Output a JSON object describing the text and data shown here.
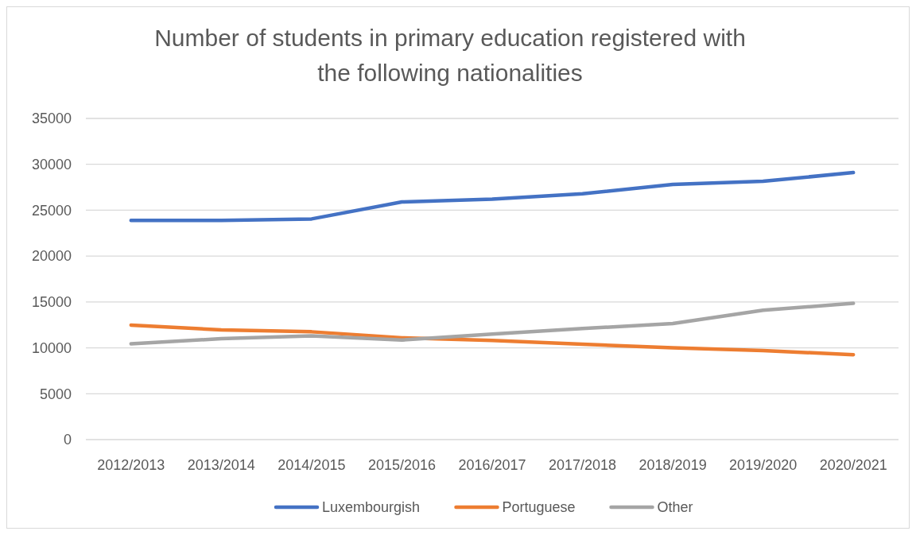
{
  "chart_data": {
    "type": "line",
    "title": "Number of students in primary education registered with the following nationalities",
    "categories": [
      "2012/2013",
      "2013/2014",
      "2014/2015",
      "2015/2016",
      "2016/2017",
      "2017/2018",
      "2018/2019",
      "2019/2020",
      "2020/2021"
    ],
    "series": [
      {
        "name": "Luxembourgish",
        "color": "#4472c4",
        "values": [
          23900,
          23900,
          24050,
          25900,
          26200,
          26800,
          27800,
          28150,
          29100
        ]
      },
      {
        "name": "Portuguese",
        "color": "#ed7d31",
        "values": [
          12480,
          11950,
          11750,
          11100,
          10800,
          10400,
          10000,
          9700,
          9250
        ]
      },
      {
        "name": "Other",
        "color": "#a5a5a5",
        "values": [
          10430,
          11000,
          11300,
          10850,
          11500,
          12100,
          12650,
          14100,
          14850
        ]
      }
    ],
    "ylim": [
      0,
      35000
    ],
    "yticks": [
      0,
      5000,
      10000,
      15000,
      20000,
      25000,
      30000,
      35000
    ],
    "grid": "y",
    "legend": "bottom",
    "marker": "none",
    "line_style": "solid"
  }
}
